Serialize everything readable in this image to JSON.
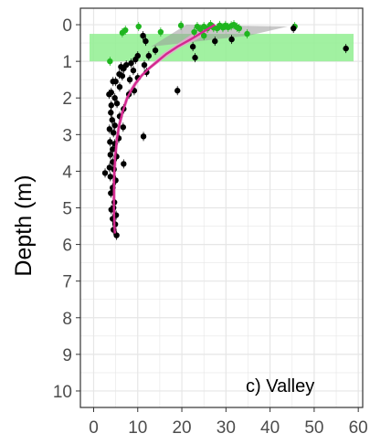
{
  "chart_data": {
    "type": "scatter",
    "title": "",
    "xlabel": "",
    "ylabel": "Depth (m)",
    "panel_label": "c) Valley",
    "xlim": [
      -3,
      61
    ],
    "ylim": [
      -0.45,
      10.45
    ],
    "y_reversed": true,
    "grid": true,
    "x_ticks": [
      0,
      10,
      20,
      30,
      40,
      50,
      60
    ],
    "y_ticks": [
      0,
      1,
      2,
      3,
      4,
      5,
      6,
      7,
      8,
      9,
      10
    ],
    "colors": {
      "band": "#90ee90",
      "ribbon_pink": "#e7a3d1",
      "ribbon_grey": "#9a9a9a",
      "fit_line": "#d4288f",
      "points_black": "#000000",
      "points_green": "#1fb51f",
      "grid": "#e6e6e6",
      "frame": "#333333"
    },
    "band": {
      "ymin": 0.25,
      "ymax": 1.0
    },
    "fit_curve": [
      [
        27.5,
        0.0
      ],
      [
        25.0,
        0.18
      ],
      [
        22.0,
        0.4
      ],
      [
        19.0,
        0.6
      ],
      [
        16.5,
        0.8
      ],
      [
        14.5,
        1.0
      ],
      [
        12.5,
        1.2
      ],
      [
        10.8,
        1.4
      ],
      [
        9.5,
        1.6
      ],
      [
        8.5,
        1.8
      ],
      [
        7.6,
        2.0
      ],
      [
        6.5,
        2.4
      ],
      [
        5.7,
        2.8
      ],
      [
        5.2,
        3.2
      ],
      [
        4.9,
        3.6
      ],
      [
        4.7,
        4.0
      ],
      [
        4.6,
        4.5
      ],
      [
        4.6,
        5.0
      ],
      [
        4.7,
        5.5
      ],
      [
        4.8,
        5.7
      ]
    ],
    "fit_ribbon": {
      "upper": [
        [
          29.0,
          0.0
        ],
        [
          27.0,
          0.15
        ],
        [
          23.5,
          0.4
        ],
        [
          20.0,
          0.6
        ],
        [
          17.5,
          0.8
        ],
        [
          15.2,
          1.0
        ],
        [
          13.0,
          1.2
        ],
        [
          11.3,
          1.4
        ],
        [
          10.0,
          1.6
        ],
        [
          9.0,
          1.8
        ],
        [
          8.0,
          2.0
        ],
        [
          6.9,
          2.4
        ],
        [
          6.1,
          2.8
        ],
        [
          5.6,
          3.2
        ],
        [
          5.3,
          3.6
        ],
        [
          5.1,
          4.0
        ],
        [
          5.0,
          4.5
        ],
        [
          5.0,
          5.0
        ],
        [
          5.2,
          5.5
        ],
        [
          5.4,
          5.7
        ]
      ],
      "lower": [
        [
          26.0,
          0.0
        ],
        [
          23.0,
          0.2
        ],
        [
          20.5,
          0.4
        ],
        [
          18.0,
          0.6
        ],
        [
          15.5,
          0.8
        ],
        [
          13.8,
          1.0
        ],
        [
          12.0,
          1.2
        ],
        [
          10.3,
          1.4
        ],
        [
          9.0,
          1.6
        ],
        [
          8.0,
          1.8
        ],
        [
          7.2,
          2.0
        ],
        [
          6.1,
          2.4
        ],
        [
          5.3,
          2.8
        ],
        [
          4.8,
          3.2
        ],
        [
          4.5,
          3.6
        ],
        [
          4.3,
          4.0
        ],
        [
          4.2,
          4.5
        ],
        [
          4.2,
          5.0
        ],
        [
          4.3,
          5.5
        ],
        [
          4.4,
          5.7
        ]
      ]
    },
    "grey_wedge": [
      [
        13,
        0.6
      ],
      [
        21,
        0.0
      ],
      [
        44,
        0.05
      ],
      [
        35,
        0.3
      ]
    ],
    "series": [
      {
        "name": "",
        "color": "green",
        "points": [
          [
            6.5,
            0.22
          ],
          [
            7.2,
            0.15
          ],
          [
            10.2,
            0.05
          ],
          [
            15.2,
            0.2
          ],
          [
            19.8,
            0.02
          ],
          [
            22.8,
            0.2
          ],
          [
            23.5,
            0.05
          ],
          [
            24.2,
            0.12
          ],
          [
            25.0,
            0.05
          ],
          [
            25.8,
            0.1
          ],
          [
            26.5,
            0.0
          ],
          [
            27.2,
            0.08
          ],
          [
            28.0,
            0.1
          ],
          [
            28.6,
            0.02
          ],
          [
            29.3,
            0.08
          ],
          [
            29.9,
            0.02
          ],
          [
            30.5,
            0.07
          ],
          [
            31.2,
            0.03
          ],
          [
            31.8,
            0.0
          ],
          [
            32.5,
            0.07
          ],
          [
            33.0,
            0.1
          ],
          [
            25.0,
            0.3
          ],
          [
            34.8,
            0.25
          ],
          [
            45.6,
            0.05
          ],
          [
            3.7,
            1.0
          ]
        ]
      },
      {
        "name": "",
        "color": "black",
        "points": [
          [
            45.3,
            0.1
          ],
          [
            31.3,
            0.4
          ],
          [
            57.2,
            0.65
          ],
          [
            27.5,
            0.45
          ],
          [
            22.5,
            0.6
          ],
          [
            23.0,
            0.9
          ],
          [
            19.0,
            1.8
          ],
          [
            14.0,
            0.7
          ],
          [
            12.5,
            0.85
          ],
          [
            11.8,
            0.45
          ],
          [
            11.5,
            1.1
          ],
          [
            12.0,
            1.3
          ],
          [
            10.0,
            0.85
          ],
          [
            9.5,
            0.95
          ],
          [
            11.2,
            0.3
          ],
          [
            11.3,
            3.05
          ],
          [
            8.5,
            1.05
          ],
          [
            9.0,
            1.25
          ],
          [
            8.2,
            1.5
          ],
          [
            10.0,
            1.45
          ],
          [
            9.2,
            1.8
          ],
          [
            8.0,
            1.9
          ],
          [
            7.4,
            1.1
          ],
          [
            6.8,
            1.2
          ],
          [
            6.2,
            1.15
          ],
          [
            5.8,
            1.35
          ],
          [
            6.5,
            1.4
          ],
          [
            5.0,
            1.55
          ],
          [
            4.4,
            1.55
          ],
          [
            5.9,
            1.7
          ],
          [
            4.0,
            1.85
          ],
          [
            3.5,
            1.9
          ],
          [
            4.8,
            2.0
          ],
          [
            5.3,
            2.15
          ],
          [
            4.0,
            2.2
          ],
          [
            6.8,
            2.3
          ],
          [
            3.9,
            2.4
          ],
          [
            5.9,
            2.5
          ],
          [
            4.2,
            2.6
          ],
          [
            4.8,
            2.75
          ],
          [
            6.7,
            2.8
          ],
          [
            3.6,
            2.85
          ],
          [
            4.5,
            2.95
          ],
          [
            5.7,
            3.1
          ],
          [
            3.7,
            3.2
          ],
          [
            4.8,
            3.25
          ],
          [
            4.3,
            3.4
          ],
          [
            3.8,
            3.55
          ],
          [
            5.2,
            3.6
          ],
          [
            4.3,
            3.75
          ],
          [
            6.8,
            3.8
          ],
          [
            3.6,
            3.9
          ],
          [
            4.6,
            3.95
          ],
          [
            2.6,
            4.05
          ],
          [
            3.8,
            4.15
          ],
          [
            5.0,
            4.25
          ],
          [
            4.3,
            4.45
          ],
          [
            3.9,
            4.6
          ],
          [
            4.7,
            4.85
          ],
          [
            4.5,
            5.0
          ],
          [
            4.0,
            5.05
          ],
          [
            5.1,
            5.2
          ],
          [
            4.3,
            5.3
          ],
          [
            4.9,
            5.45
          ],
          [
            4.5,
            5.6
          ],
          [
            5.2,
            5.75
          ]
        ]
      }
    ]
  }
}
